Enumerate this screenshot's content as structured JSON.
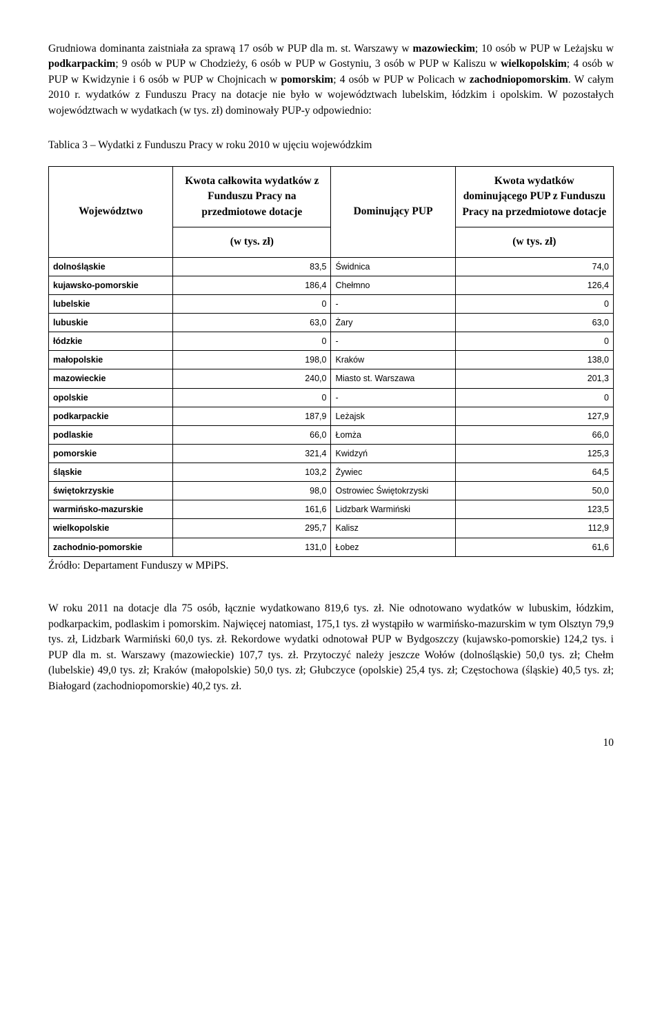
{
  "para1_html": "Grudniowa dominanta zaistniała za sprawą 17 osób w PUP dla m. st. Warszawy w <b>mazowieckim</b>; 10 osób w PUP w Leżajsku w <b>podkarpackim</b>; 9 osób w PUP w Chodzieży, 6 osób w PUP w Gostyniu, 3 osób w PUP w Kaliszu w <b>wielkopolskim</b>; 4 osób w PUP w Kwidzynie i 6 osób w PUP w Chojnicach w <b>pomorskim</b>; 4 osób w PUP w Policach w <b>zachodniopomorskim</b>. W całym 2010 r. wydatków z Funduszu Pracy na dotacje nie było w województwach lubelskim, łódzkim i opolskim. W pozostałych województwach w wydatkach (w tys. zł) dominowały PUP-y odpowiednio:",
  "table_caption": "Tablica 3 – Wydatki z Funduszu Pracy w roku 2010 w ujęciu wojewódzkim",
  "headers": {
    "h1": "Województwo",
    "h2": "Kwota całkowita wydatków z Funduszu Pracy na przedmiotowe dotacje",
    "h3": "Dominujący PUP",
    "h4": "Kwota wydatków dominującego PUP z Funduszu Pracy na przedmiotowe dotacje",
    "unit": "(w tys. zł)"
  },
  "rows": [
    {
      "region": "dolnośląskie",
      "total": "83,5",
      "pup": "Świdnica",
      "val": "74,0"
    },
    {
      "region": "kujawsko-pomorskie",
      "total": "186,4",
      "pup": "Chełmno",
      "val": "126,4"
    },
    {
      "region": "lubelskie",
      "total": "0",
      "pup": "-",
      "val": "0"
    },
    {
      "region": "lubuskie",
      "total": "63,0",
      "pup": "Żary",
      "val": "63,0"
    },
    {
      "region": "łódzkie",
      "total": "0",
      "pup": "-",
      "val": "0"
    },
    {
      "region": "małopolskie",
      "total": "198,0",
      "pup": "Kraków",
      "val": "138,0"
    },
    {
      "region": "mazowieckie",
      "total": "240,0",
      "pup": "Miasto st. Warszawa",
      "val": "201,3"
    },
    {
      "region": "opolskie",
      "total": "0",
      "pup": "-",
      "val": "0"
    },
    {
      "region": "podkarpackie",
      "total": "187,9",
      "pup": "Leżajsk",
      "val": "127,9"
    },
    {
      "region": "podlaskie",
      "total": "66,0",
      "pup": "Łomża",
      "val": "66,0"
    },
    {
      "region": "pomorskie",
      "total": "321,4",
      "pup": "Kwidzyń",
      "val": "125,3"
    },
    {
      "region": "śląskie",
      "total": "103,2",
      "pup": "Żywiec",
      "val": "64,5"
    },
    {
      "region": "świętokrzyskie",
      "total": "98,0",
      "pup": "Ostrowiec Świętokrzyski",
      "val": "50,0"
    },
    {
      "region": "warmińsko-mazurskie",
      "total": "161,6",
      "pup": "Lidzbark Warmiński",
      "val": "123,5"
    },
    {
      "region": "wielkopolskie",
      "total": "295,7",
      "pup": "Kalisz",
      "val": "112,9"
    },
    {
      "region": "zachodnio-pomorskie",
      "total": "131,0",
      "pup": "Łobez",
      "val": "61,6"
    }
  ],
  "source": "Źródło: Departament Funduszy w MPiPS.",
  "para2": "W roku 2011 na dotacje dla 75 osób, łącznie wydatkowano 819,6 tys. zł. Nie odnotowano wydatków w lubuskim, łódzkim, podkarpackim, podlaskim i pomorskim. Najwięcej natomiast, 175,1 tys. zł wystąpiło w warmińsko-mazurskim w tym Olsztyn 79,9 tys. zł, Lidzbark Warmiński 60,0 tys. zł. Rekordowe wydatki odnotował PUP w Bydgoszczy (kujawsko-pomorskie) 124,2 tys. i PUP dla m. st. Warszawy (mazowieckie) 107,7 tys. zł. Przytoczyć należy jeszcze Wołów (dolnośląskie) 50,0 tys. zł; Chełm (lubelskie) 49,0 tys. zł; Kraków (małopolskie) 50,0 tys. zł; Głubczyce (opolskie) 25,4 tys. zł; Częstochowa (śląskie) 40,5 tys. zł; Białogard (zachodniopomorskie) 40,2 tys. zł.",
  "page_number": "10"
}
